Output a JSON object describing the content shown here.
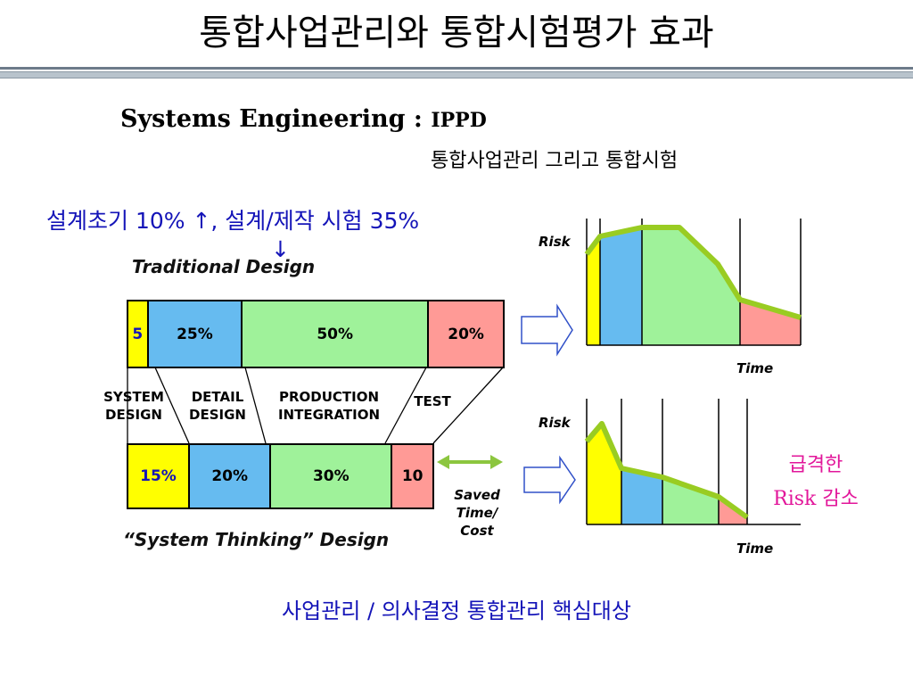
{
  "slide": {
    "title": "통합사업관리와 통합시험평가 효과",
    "subtitle_main": "Systems Engineering : ",
    "subtitle_ippd": "IPPD",
    "subtitle_kr": "통합사업관리 그리고 통합시험",
    "blue_note": "설계초기 10% ↑, 설계/제작 시험 35%",
    "blue_note_arrow": "↓",
    "footer": "사업관리 / 의사결정 통합관리 핵심대상"
  },
  "traditional": {
    "label": "Traditional Design",
    "segments": [
      {
        "label": "5",
        "value": 5,
        "color": "#ffff00",
        "text_color": "#1414b8"
      },
      {
        "label": "25%",
        "value": 25,
        "color": "#66bbf0",
        "text_color": "#000000"
      },
      {
        "label": "50%",
        "value": 50,
        "color": "#9ff29a",
        "text_color": "#000000"
      },
      {
        "label": "20%",
        "value": 20,
        "color": "#ff9a96",
        "text_color": "#000000"
      }
    ]
  },
  "phases": [
    {
      "line1": "SYSTEM",
      "line2": "DESIGN"
    },
    {
      "line1": "DETAIL",
      "line2": "DESIGN"
    },
    {
      "line1": "PRODUCTION",
      "line2": "INTEGRATION"
    },
    {
      "line1": "TEST",
      "line2": ""
    }
  ],
  "system_thinking": {
    "label": "“System Thinking” Design",
    "segments": [
      {
        "label": "15%",
        "value": 15,
        "color": "#ffff00",
        "text_color": "#1414b8"
      },
      {
        "label": "20%",
        "value": 20,
        "color": "#66bbf0",
        "text_color": "#000000"
      },
      {
        "label": "30%",
        "value": 30,
        "color": "#9ff29a",
        "text_color": "#000000"
      },
      {
        "label": "10",
        "value": 10,
        "color": "#ff9a96",
        "text_color": "#000000"
      }
    ]
  },
  "saved": {
    "line1": "Saved",
    "line2": "Time/",
    "line3": "Cost"
  },
  "risk_charts": {
    "axis_y": "Risk",
    "axis_x": "Time"
  },
  "risk_note": {
    "line1": "급격한",
    "line2": "Risk 감소"
  },
  "colors": {
    "yellow": "#ffff00",
    "blue": "#66bbf0",
    "green": "#9ff29a",
    "pink": "#ff9a96",
    "risk_line": "#99cc22",
    "accent_blue": "#1414b8",
    "accent_pink": "#e2169a"
  }
}
